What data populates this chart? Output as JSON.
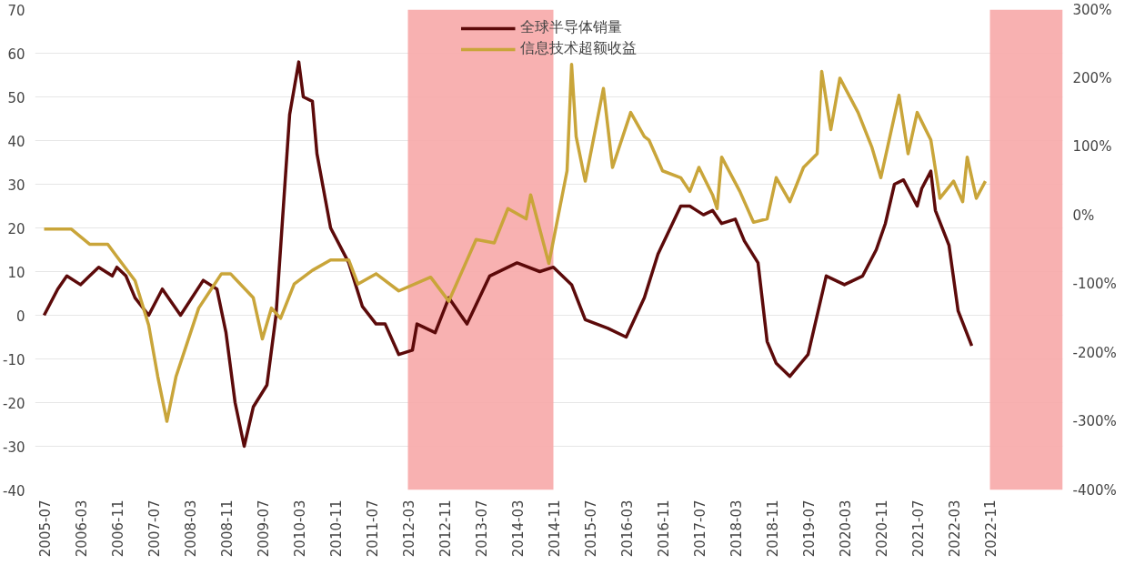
{
  "chart_data": {
    "type": "line",
    "legend": "top",
    "grid": "y",
    "xlim": [
      "2005-05",
      "2024-03"
    ],
    "xticks": [
      "2005-07",
      "2006-03",
      "2006-11",
      "2007-07",
      "2008-03",
      "2008-11",
      "2009-07",
      "2010-03",
      "2010-11",
      "2011-07",
      "2012-03",
      "2012-11",
      "2013-07",
      "2014-03",
      "2014-11",
      "2015-07",
      "2016-03",
      "2016-11",
      "2017-07",
      "2018-03",
      "2018-11",
      "2019-07",
      "2020-03",
      "2020-11",
      "2021-07",
      "2022-03",
      "2022-11"
    ],
    "ylim": [
      -40,
      70
    ],
    "yticks": [
      -40,
      -30,
      -20,
      -10,
      0,
      10,
      20,
      30,
      40,
      50,
      60,
      70
    ],
    "y2lim": [
      -400,
      300
    ],
    "y2ticks": [
      {
        "value": -400,
        "label": "-400%"
      },
      {
        "value": -300,
        "label": "-300%"
      },
      {
        "value": -200,
        "label": "-200%"
      },
      {
        "value": -100,
        "label": "-100%"
      },
      {
        "value": 0,
        "label": "0%"
      },
      {
        "value": 100,
        "label": "100%"
      },
      {
        "value": 200,
        "label": "200%"
      },
      {
        "value": 300,
        "label": "300%"
      }
    ],
    "bands": [
      {
        "axis": "x",
        "from": "2012-03",
        "to": "2014-11",
        "color": "#f7a8a8"
      },
      {
        "axis": "x",
        "from": "2022-11",
        "to": "2024-03",
        "color": "#f7a8a8"
      }
    ],
    "series": [
      {
        "name": "全球半导体销量",
        "color": "#5c0a0a",
        "x": [
          "2005-07",
          "2005-10",
          "2005-12",
          "2006-03",
          "2006-05",
          "2006-07",
          "2006-10",
          "2006-11",
          "2007-01",
          "2007-03",
          "2007-06",
          "2007-09",
          "2008-01",
          "2008-06",
          "2008-09",
          "2008-11",
          "2009-01",
          "2009-03",
          "2009-05",
          "2009-08",
          "2009-10",
          "2010-01",
          "2010-03",
          "2010-04",
          "2010-06",
          "2010-07",
          "2010-10",
          "2011-02",
          "2011-05",
          "2011-08",
          "2011-10",
          "2012-01",
          "2012-04",
          "2012-05",
          "2012-09",
          "2012-12",
          "2013-04",
          "2013-09",
          "2014-03",
          "2014-08",
          "2014-11",
          "2015-03",
          "2015-06",
          "2015-11",
          "2016-03",
          "2016-07",
          "2016-10",
          "2017-03",
          "2017-05",
          "2017-08",
          "2017-10",
          "2017-12",
          "2018-03",
          "2018-05",
          "2018-08",
          "2018-10",
          "2018-12",
          "2019-03",
          "2019-07",
          "2019-11",
          "2020-03",
          "2020-07",
          "2020-10",
          "2020-12",
          "2021-02",
          "2021-04",
          "2021-07",
          "2021-08",
          "2021-10",
          "2021-11",
          "2022-02",
          "2022-04",
          "2022-07"
        ],
        "values": [
          0,
          6,
          9,
          7,
          9,
          11,
          9,
          11,
          9,
          4,
          0,
          6,
          0,
          8,
          6,
          -4,
          -20,
          -30,
          -21,
          -16,
          0,
          46,
          58,
          50,
          49,
          37,
          20,
          12,
          2,
          -2,
          -2,
          -9,
          -8,
          -2,
          -4,
          4,
          -2,
          9,
          12,
          10,
          11,
          7,
          -1,
          -3,
          -5,
          4,
          14,
          25,
          25,
          23,
          24,
          21,
          22,
          17,
          12,
          -6,
          -11,
          -14,
          -9,
          9,
          7,
          9,
          15,
          21,
          30,
          31,
          25,
          29,
          33,
          24,
          16,
          1,
          -7
        ]
      },
      {
        "name": "信息技术超额收益",
        "color": "#c9a53a",
        "axis": "y2",
        "x": [
          "2005-07",
          "2006-01",
          "2006-05",
          "2006-09",
          "2006-11",
          "2007-03",
          "2007-06",
          "2007-08",
          "2007-10",
          "2007-12",
          "2008-02",
          "2008-05",
          "2008-07",
          "2008-10",
          "2008-12",
          "2009-05",
          "2009-07",
          "2009-09",
          "2009-11",
          "2010-02",
          "2010-06",
          "2010-10",
          "2011-02",
          "2011-04",
          "2011-08",
          "2012-01",
          "2012-08",
          "2012-12",
          "2013-06",
          "2013-10",
          "2014-01",
          "2014-05",
          "2014-06",
          "2014-10",
          "2015-02",
          "2015-03",
          "2015-04",
          "2015-06",
          "2015-10",
          "2015-12",
          "2016-04",
          "2016-07",
          "2016-08",
          "2016-11",
          "2017-03",
          "2017-05",
          "2017-07",
          "2017-10",
          "2017-11",
          "2017-12",
          "2018-04",
          "2018-07",
          "2018-10",
          "2018-12",
          "2019-03",
          "2019-06",
          "2019-09",
          "2019-10",
          "2019-12",
          "2020-02",
          "2020-06",
          "2020-09",
          "2020-11",
          "2021-03",
          "2021-05",
          "2021-07",
          "2021-10",
          "2021-12",
          "2022-03",
          "2022-05",
          "2022-06",
          "2022-08",
          "2022-10"
        ],
        "values": [
          -20,
          -20,
          -42,
          -42,
          -60,
          -95,
          -160,
          -235,
          -300,
          -235,
          -195,
          -135,
          -115,
          -85,
          -85,
          -120,
          -180,
          -135,
          -150,
          -100,
          -80,
          -65,
          -65,
          -100,
          -85,
          -110,
          -90,
          -125,
          -35,
          -40,
          10,
          -5,
          30,
          -70,
          65,
          220,
          115,
          50,
          185,
          70,
          150,
          115,
          110,
          65,
          55,
          35,
          70,
          30,
          10,
          85,
          35,
          -10,
          -5,
          55,
          20,
          70,
          90,
          210,
          125,
          200,
          150,
          100,
          55,
          175,
          90,
          150,
          110,
          25,
          50,
          20,
          85,
          25,
          50
        ]
      }
    ]
  }
}
